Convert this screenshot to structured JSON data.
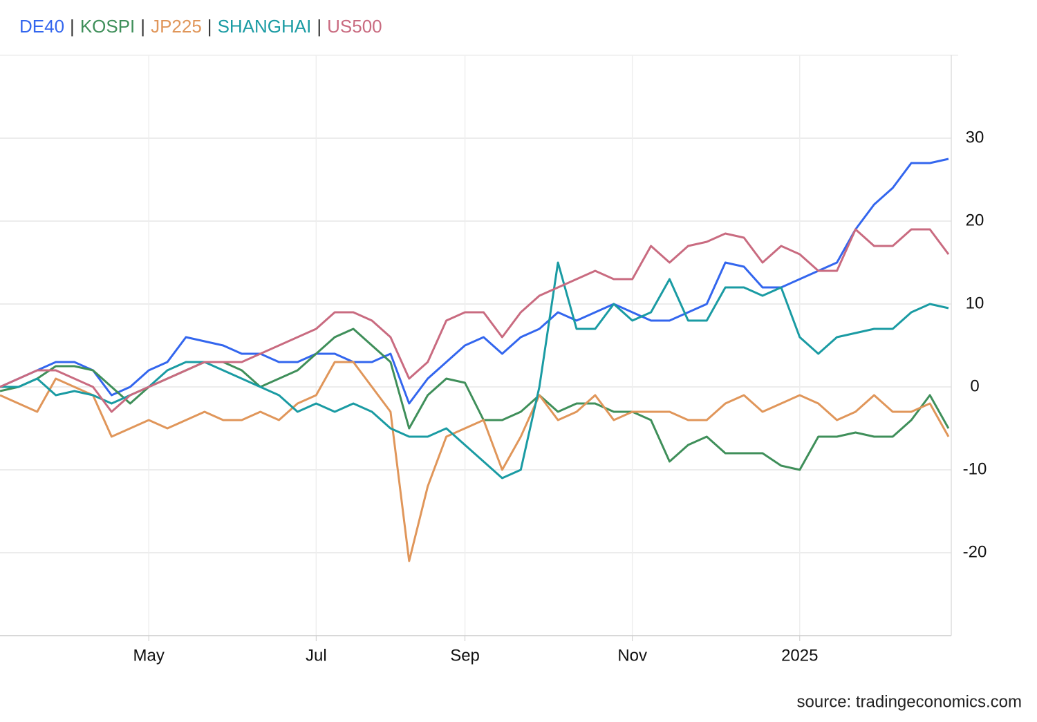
{
  "chart_data": {
    "type": "line",
    "legend_separator": "|",
    "source": "source: tradingeconomics.com",
    "categories": [
      null,
      null,
      null,
      null,
      null,
      null,
      null,
      null,
      "May",
      null,
      null,
      null,
      null,
      null,
      null,
      null,
      null,
      "Jul",
      null,
      null,
      null,
      null,
      null,
      null,
      null,
      "Sep",
      null,
      null,
      null,
      null,
      null,
      null,
      null,
      null,
      "Nov",
      null,
      null,
      null,
      null,
      null,
      null,
      null,
      null,
      "2025",
      null,
      null,
      null,
      null,
      null,
      null,
      null,
      null
    ],
    "series": [
      {
        "name": "DE40",
        "color": "#3366ee",
        "values": [
          0,
          1,
          2,
          3,
          3,
          2,
          -1,
          0,
          2,
          3,
          6,
          5.5,
          5,
          4,
          4,
          3,
          3,
          4,
          4,
          3,
          3,
          4,
          -2,
          1,
          3,
          5,
          6,
          4,
          6,
          7,
          9,
          8,
          9,
          10,
          9,
          8,
          8,
          9,
          10,
          15,
          14.5,
          12,
          12,
          13,
          14,
          15,
          19,
          22,
          24,
          27,
          27,
          27.5
        ]
      },
      {
        "name": "KOSPI",
        "color": "#3f8f5a",
        "values": [
          -0.5,
          0,
          1,
          2.5,
          2.5,
          2,
          0,
          -2,
          0,
          1,
          2,
          3,
          3,
          2,
          0,
          1,
          2,
          4,
          6,
          7,
          5,
          3,
          -5,
          -1,
          1,
          0.5,
          -4,
          -4,
          -3,
          -1,
          -3,
          -2,
          -2,
          -3,
          -3,
          -4,
          -9,
          -7,
          -6,
          -8,
          -8,
          -8,
          -9.5,
          -10,
          -6,
          -6,
          -5.5,
          -6,
          -6,
          -4,
          -1,
          -5
        ]
      },
      {
        "name": "JP225",
        "color": "#e0965a",
        "values": [
          -1,
          -2,
          -3,
          1,
          0,
          -1,
          -6,
          -5,
          -4,
          -5,
          -4,
          -3,
          -4,
          -4,
          -3,
          -4,
          -2,
          -1,
          3,
          3,
          0,
          -3,
          -21,
          -12,
          -6,
          -5,
          -4,
          -10,
          -6,
          -1,
          -4,
          -3,
          -1,
          -4,
          -3,
          -3,
          -3,
          -4,
          -4,
          -2,
          -1,
          -3,
          -2,
          -1,
          -2,
          -4,
          -3,
          -1,
          -3,
          -3,
          -2,
          -6
        ]
      },
      {
        "name": "SHANGHAI",
        "color": "#1a9ba3",
        "values": [
          0,
          0,
          1,
          -1,
          -0.5,
          -1,
          -2,
          -1,
          0,
          2,
          3,
          3,
          2,
          1,
          0,
          -1,
          -3,
          -2,
          -3,
          -2,
          -3,
          -5,
          -6,
          -6,
          -5,
          -7,
          -9,
          -11,
          -10,
          0,
          15,
          7,
          7,
          10,
          8,
          9,
          13,
          8,
          8,
          12,
          12,
          11,
          12,
          6,
          4,
          6,
          6.5,
          7,
          7,
          9,
          10,
          9.5
        ]
      },
      {
        "name": "US500",
        "color": "#c96b80",
        "values": [
          0,
          1,
          2,
          2,
          1,
          0,
          -3,
          -1,
          0,
          1,
          2,
          3,
          3,
          3,
          4,
          5,
          6,
          7,
          9,
          9,
          8,
          6,
          1,
          3,
          8,
          9,
          9,
          6,
          9,
          11,
          12,
          13,
          14,
          13,
          13,
          17,
          15,
          17,
          17.5,
          18.5,
          18,
          15,
          17,
          16,
          14,
          14,
          19,
          17,
          17,
          19,
          19,
          16
        ]
      }
    ],
    "ylim": [
      -30,
      40
    ],
    "yticks": [
      -20,
      -10,
      0,
      10,
      20,
      30
    ],
    "grid": true
  }
}
